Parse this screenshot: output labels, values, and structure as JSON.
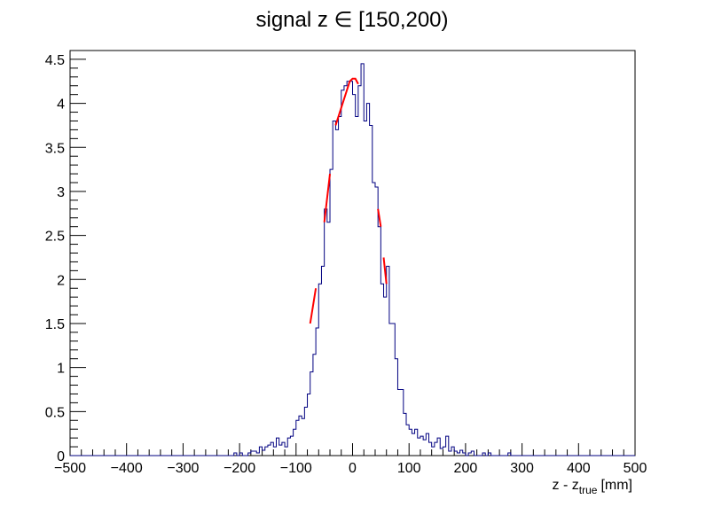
{
  "chart_data": {
    "type": "histogram",
    "title": "signal z ∈ [150,200)",
    "xlabel": {
      "main": "z - z",
      "subscript": "true",
      "unit": "[mm]"
    },
    "ylabel": "",
    "xlim": [
      -500,
      500
    ],
    "ylim": [
      0,
      4.6
    ],
    "x_ticks": [
      "−500",
      "−400",
      "−300",
      "−200",
      "−100",
      "0",
      "100",
      "200",
      "300",
      "400",
      "500"
    ],
    "y_ticks": [
      "0",
      "0.5",
      "1",
      "1.5",
      "2",
      "2.5",
      "3",
      "3.5",
      "4",
      "4.5"
    ],
    "grid": false,
    "bin_width": 5,
    "series": [
      {
        "kind": "histogram",
        "color": "#000080",
        "bins": [
          [
            -500,
            0
          ],
          [
            -495,
            0
          ],
          [
            -490,
            0
          ],
          [
            -485,
            0
          ],
          [
            -480,
            0
          ],
          [
            -475,
            0
          ],
          [
            -470,
            0
          ],
          [
            -465,
            0
          ],
          [
            -460,
            0
          ],
          [
            -455,
            0
          ],
          [
            -450,
            0
          ],
          [
            -445,
            0
          ],
          [
            -440,
            0
          ],
          [
            -435,
            0
          ],
          [
            -430,
            0
          ],
          [
            -425,
            0
          ],
          [
            -420,
            0
          ],
          [
            -415,
            0
          ],
          [
            -410,
            0
          ],
          [
            -405,
            0
          ],
          [
            -400,
            0
          ],
          [
            -395,
            0
          ],
          [
            -390,
            0
          ],
          [
            -385,
            0
          ],
          [
            -380,
            0
          ],
          [
            -375,
            0
          ],
          [
            -370,
            0
          ],
          [
            -365,
            0
          ],
          [
            -360,
            0
          ],
          [
            -355,
            0
          ],
          [
            -350,
            0
          ],
          [
            -345,
            0
          ],
          [
            -340,
            0
          ],
          [
            -335,
            0
          ],
          [
            -330,
            0
          ],
          [
            -325,
            0
          ],
          [
            -320,
            0
          ],
          [
            -315,
            0
          ],
          [
            -310,
            0
          ],
          [
            -305,
            0
          ],
          [
            -300,
            0
          ],
          [
            -295,
            0
          ],
          [
            -290,
            0
          ],
          [
            -285,
            0
          ],
          [
            -280,
            0
          ],
          [
            -275,
            0
          ],
          [
            -270,
            0
          ],
          [
            -265,
            0
          ],
          [
            -260,
            0
          ],
          [
            -255,
            0
          ],
          [
            -250,
            0
          ],
          [
            -245,
            0
          ],
          [
            -240,
            0
          ],
          [
            -235,
            0
          ],
          [
            -230,
            0
          ],
          [
            -225,
            0
          ],
          [
            -220,
            0
          ],
          [
            -215,
            0
          ],
          [
            -210,
            0.03
          ],
          [
            -205,
            0
          ],
          [
            -200,
            0.03
          ],
          [
            -195,
            0
          ],
          [
            -190,
            0
          ],
          [
            -185,
            0.03
          ],
          [
            -180,
            0.05
          ],
          [
            -175,
            0.05
          ],
          [
            -170,
            0.03
          ],
          [
            -165,
            0.1
          ],
          [
            -160,
            0.06
          ],
          [
            -155,
            0.1
          ],
          [
            -150,
            0.12
          ],
          [
            -145,
            0.15
          ],
          [
            -140,
            0.1
          ],
          [
            -135,
            0.2
          ],
          [
            -130,
            0.12
          ],
          [
            -125,
            0.15
          ],
          [
            -120,
            0.1
          ],
          [
            -115,
            0.2
          ],
          [
            -110,
            0.22
          ],
          [
            -105,
            0.3
          ],
          [
            -100,
            0.4
          ],
          [
            -95,
            0.45
          ],
          [
            -90,
            0.42
          ],
          [
            -85,
            0.55
          ],
          [
            -80,
            0.7
          ],
          [
            -75,
            0.95
          ],
          [
            -70,
            1.15
          ],
          [
            -65,
            1.45
          ],
          [
            -60,
            1.95
          ],
          [
            -55,
            2.15
          ],
          [
            -50,
            2.8
          ],
          [
            -45,
            2.65
          ],
          [
            -40,
            3.25
          ],
          [
            -35,
            3.8
          ],
          [
            -30,
            3.7
          ],
          [
            -25,
            3.85
          ],
          [
            -20,
            4.15
          ],
          [
            -15,
            4.2
          ],
          [
            -10,
            4.25
          ],
          [
            -5,
            4.25
          ],
          [
            0,
            4.1
          ],
          [
            5,
            3.85
          ],
          [
            10,
            4.2
          ],
          [
            15,
            4.45
          ],
          [
            20,
            3.8
          ],
          [
            25,
            4.0
          ],
          [
            30,
            3.75
          ],
          [
            35,
            3.1
          ],
          [
            40,
            3.05
          ],
          [
            45,
            2.6
          ],
          [
            50,
            1.95
          ],
          [
            55,
            1.8
          ],
          [
            60,
            2.15
          ],
          [
            65,
            1.5
          ],
          [
            70,
            1.5
          ],
          [
            75,
            1.1
          ],
          [
            80,
            0.75
          ],
          [
            85,
            0.75
          ],
          [
            90,
            0.48
          ],
          [
            95,
            0.35
          ],
          [
            100,
            0.3
          ],
          [
            105,
            0.25
          ],
          [
            110,
            0.3
          ],
          [
            115,
            0.2
          ],
          [
            120,
            0.22
          ],
          [
            125,
            0.18
          ],
          [
            130,
            0.25
          ],
          [
            135,
            0.15
          ],
          [
            140,
            0.1
          ],
          [
            145,
            0.15
          ],
          [
            150,
            0.2
          ],
          [
            155,
            0.08
          ],
          [
            160,
            0.1
          ],
          [
            165,
            0.22
          ],
          [
            170,
            0.05
          ],
          [
            175,
            0.1
          ],
          [
            180,
            0.05
          ],
          [
            185,
            0.03
          ],
          [
            190,
            0.06
          ],
          [
            195,
            0.03
          ],
          [
            200,
            0
          ],
          [
            205,
            0.03
          ],
          [
            210,
            0.05
          ],
          [
            215,
            0
          ],
          [
            220,
            0
          ],
          [
            225,
            0
          ],
          [
            230,
            0.03
          ],
          [
            235,
            0
          ],
          [
            240,
            0.03
          ],
          [
            245,
            0
          ],
          [
            250,
            0
          ],
          [
            255,
            0
          ],
          [
            260,
            0
          ],
          [
            265,
            0
          ],
          [
            270,
            0
          ],
          [
            275,
            0.03
          ],
          [
            280,
            0
          ],
          [
            285,
            0
          ],
          [
            290,
            0
          ],
          [
            295,
            0
          ],
          [
            300,
            0
          ],
          [
            305,
            0
          ],
          [
            310,
            0
          ],
          [
            315,
            0
          ],
          [
            320,
            0
          ],
          [
            325,
            0
          ],
          [
            330,
            0
          ],
          [
            335,
            0
          ],
          [
            340,
            0
          ],
          [
            345,
            0
          ],
          [
            350,
            0
          ],
          [
            355,
            0
          ],
          [
            360,
            0
          ],
          [
            365,
            0
          ],
          [
            370,
            0
          ],
          [
            375,
            0
          ],
          [
            380,
            0
          ],
          [
            385,
            0
          ],
          [
            390,
            0
          ],
          [
            395,
            0
          ],
          [
            400,
            0
          ],
          [
            405,
            0
          ],
          [
            410,
            0
          ],
          [
            415,
            0
          ],
          [
            420,
            0
          ],
          [
            425,
            0
          ],
          [
            430,
            0
          ],
          [
            435,
            0
          ],
          [
            440,
            0
          ],
          [
            445,
            0
          ],
          [
            450,
            0
          ],
          [
            455,
            0
          ],
          [
            460,
            0
          ],
          [
            465,
            0
          ],
          [
            470,
            0
          ],
          [
            475,
            0
          ],
          [
            480,
            0
          ],
          [
            485,
            0
          ],
          [
            490,
            0
          ],
          [
            495,
            0
          ]
        ]
      },
      {
        "kind": "fit_segments",
        "color": "#ff0000",
        "segments": [
          {
            "x": [
              -75,
              -65
            ],
            "y": [
              1.5,
              1.9
            ]
          },
          {
            "x": [
              -50,
              -40
            ],
            "y": [
              2.65,
              3.2
            ]
          },
          {
            "x": [
              -30,
              -5,
              0,
              5,
              10
            ],
            "y": [
              3.75,
              4.25,
              4.28,
              4.28,
              4.22
            ]
          },
          {
            "x": [
              45,
              50
            ],
            "y": [
              2.8,
              2.6
            ]
          },
          {
            "x": [
              55,
              60
            ],
            "y": [
              2.25,
              1.95
            ]
          }
        ]
      }
    ]
  }
}
